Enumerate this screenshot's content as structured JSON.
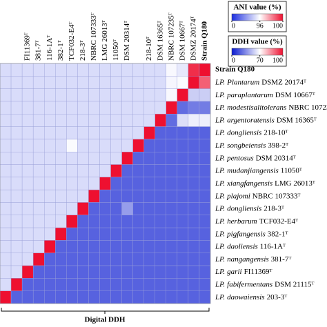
{
  "chart_data": {
    "type": "heatmap",
    "x_label": "Digital DDH",
    "columns": [
      null,
      null,
      "FI11369ᵀ",
      "381-7ᵀ",
      "116-1Aᵀ",
      "382-1ᵀ",
      "TCF032-E4ᵀ",
      "218-3ᵀ",
      "NBRC 107333ᵀ",
      "LMG 26013ᵀ",
      "11050ᵀ",
      "DSM 20314ᵀ",
      null,
      "218-10ᵀ",
      "DSM 16365ᵀ",
      "NBRC 107235ᵀ",
      "DSM 10667ᵀ",
      "DSMZ 20174ᵀ",
      "Strain Q180"
    ],
    "rows": [
      {
        "name": "Strain Q180"
      },
      {
        "genus": "LP.",
        "species": "Plantarum",
        "strain": "DSMZ 20174ᵀ"
      },
      {
        "genus": "LP.",
        "species": "paraplantarum",
        "strain": "DSM 10667ᵀ"
      },
      {
        "genus": "LP.",
        "species": "modestisalitolerans",
        "strain": "NBRC 107235ᵀ"
      },
      {
        "genus": "LP.",
        "species": "argentoratensis",
        "strain": "DSM 16365ᵀ"
      },
      {
        "genus": "LP.",
        "species": "dongliensis",
        "strain": "218-10ᵀ"
      },
      {
        "genus": "LP.",
        "species": "songbeiensis",
        "strain": "398-2ᵀ"
      },
      {
        "genus": "LP.",
        "species": "pentosus",
        "strain": "DSM 20314ᵀ"
      },
      {
        "genus": "LP.",
        "species": "mudanjiangensis",
        "strain": "11050ᵀ"
      },
      {
        "genus": "LP.",
        "species": "xiangfangensis",
        "strain": "LMG 26013ᵀ"
      },
      {
        "genus": "LP.",
        "species": "plajomi",
        "strain": "NBRC 107333ᵀ"
      },
      {
        "genus": "LP.",
        "species": "dongliensis",
        "strain": "218-3ᵀ"
      },
      {
        "genus": "LP.",
        "species": "herbarum",
        "strain": "TCF032-E4ᵀ"
      },
      {
        "genus": "LP.",
        "species": "pigfangensis",
        "strain": "382-1ᵀ"
      },
      {
        "genus": "LP.",
        "species": "daoliensis",
        "strain": "116-1Aᵀ"
      },
      {
        "genus": "LP.",
        "species": "nangangensis",
        "strain": "381-7ᵀ"
      },
      {
        "genus": "LP.",
        "species": "garii",
        "strain": "FI11369ᵀ"
      },
      {
        "genus": "LP.",
        "species": "fabifermentans",
        "strain": "DSM 21115ᵀ"
      },
      {
        "genus": "LP.",
        "species": "daowaiensis",
        "strain": "203-3ᵀ"
      }
    ],
    "matrix": [
      [
        80,
        80,
        80,
        80,
        80,
        80,
        80,
        80,
        80,
        80,
        80,
        80,
        80,
        80,
        80,
        93,
        86,
        99.5,
        100
      ],
      [
        80,
        80,
        80,
        80,
        80,
        80,
        80,
        80,
        80,
        80,
        80,
        80,
        80,
        80,
        80,
        92,
        94,
        100,
        90
      ],
      [
        80,
        80,
        80,
        80,
        80,
        80,
        80,
        80,
        80,
        80,
        80,
        80,
        80,
        80,
        80,
        93,
        100,
        55,
        55
      ],
      [
        80,
        80,
        80,
        80,
        80,
        80,
        80,
        80,
        80,
        80,
        80,
        80,
        80,
        80,
        80,
        100,
        25,
        30,
        30
      ],
      [
        80,
        80,
        80,
        80,
        80,
        80,
        80,
        80,
        80,
        80,
        80,
        80,
        80,
        80,
        100,
        25,
        60,
        65,
        65
      ],
      [
        80,
        80,
        80,
        80,
        80,
        80,
        80,
        80,
        80,
        80,
        80,
        80,
        80,
        100,
        22,
        22,
        22,
        22,
        22
      ],
      [
        80,
        80,
        80,
        80,
        80,
        80,
        94,
        80,
        80,
        80,
        80,
        80,
        100,
        22,
        22,
        22,
        22,
        22,
        22
      ],
      [
        80,
        80,
        80,
        80,
        80,
        80,
        80,
        80,
        80,
        80,
        80,
        100,
        22,
        22,
        22,
        22,
        22,
        22,
        22
      ],
      [
        80,
        80,
        80,
        80,
        80,
        80,
        80,
        80,
        80,
        80,
        100,
        22,
        22,
        22,
        22,
        22,
        22,
        22,
        22
      ],
      [
        80,
        80,
        80,
        80,
        80,
        80,
        80,
        80,
        80,
        100,
        22,
        22,
        22,
        22,
        22,
        22,
        22,
        22,
        22
      ],
      [
        80,
        80,
        80,
        80,
        80,
        80,
        80,
        80,
        100,
        22,
        22,
        22,
        22,
        22,
        22,
        22,
        22,
        22,
        22
      ],
      [
        80,
        80,
        80,
        80,
        80,
        80,
        80,
        100,
        22,
        22,
        22,
        40,
        22,
        22,
        22,
        22,
        22,
        22,
        22
      ],
      [
        80,
        80,
        80,
        80,
        80,
        80,
        100,
        22,
        22,
        22,
        22,
        22,
        22,
        22,
        22,
        22,
        22,
        22,
        22
      ],
      [
        80,
        80,
        80,
        80,
        80,
        100,
        22,
        22,
        22,
        22,
        22,
        22,
        22,
        22,
        22,
        22,
        22,
        22,
        22
      ],
      [
        80,
        80,
        80,
        80,
        100,
        22,
        22,
        22,
        22,
        22,
        22,
        22,
        22,
        22,
        22,
        22,
        22,
        22,
        22
      ],
      [
        80,
        80,
        80,
        100,
        22,
        22,
        22,
        22,
        22,
        22,
        22,
        22,
        22,
        22,
        22,
        22,
        22,
        22,
        22
      ],
      [
        80,
        80,
        100,
        22,
        22,
        22,
        22,
        22,
        22,
        22,
        22,
        22,
        22,
        22,
        22,
        22,
        22,
        22,
        22
      ],
      [
        80,
        100,
        22,
        22,
        22,
        22,
        22,
        22,
        22,
        22,
        22,
        22,
        22,
        22,
        22,
        22,
        22,
        22,
        22
      ],
      [
        100,
        22,
        22,
        22,
        22,
        22,
        22,
        22,
        22,
        22,
        22,
        22,
        22,
        22,
        22,
        22,
        22,
        22,
        22
      ]
    ],
    "ani_legend": {
      "title": "ANI value (%)",
      "ticks": [
        0,
        96,
        100
      ],
      "colors": [
        "#1c2ee0",
        "#ffffff",
        "#ee1030"
      ]
    },
    "ddh_legend": {
      "title": "DDH value (%)",
      "ticks": [
        0,
        70,
        100
      ],
      "colors": [
        "#0a1ad0",
        "#ffffff",
        "#ee1030"
      ]
    }
  }
}
